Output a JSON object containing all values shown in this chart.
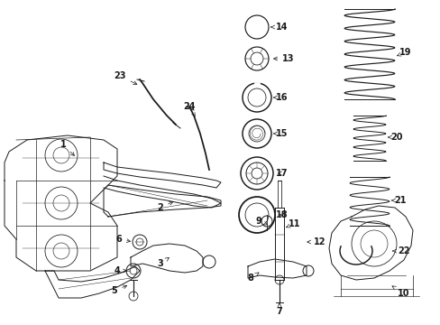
{
  "background_color": "#ffffff",
  "line_color": "#1a1a1a",
  "figsize": [
    4.89,
    3.6
  ],
  "dpi": 100,
  "arrow_style": {
    "arrowstyle": "->",
    "lw": 0.5
  },
  "fs": 7,
  "fw": "bold",
  "lw": 0.7
}
